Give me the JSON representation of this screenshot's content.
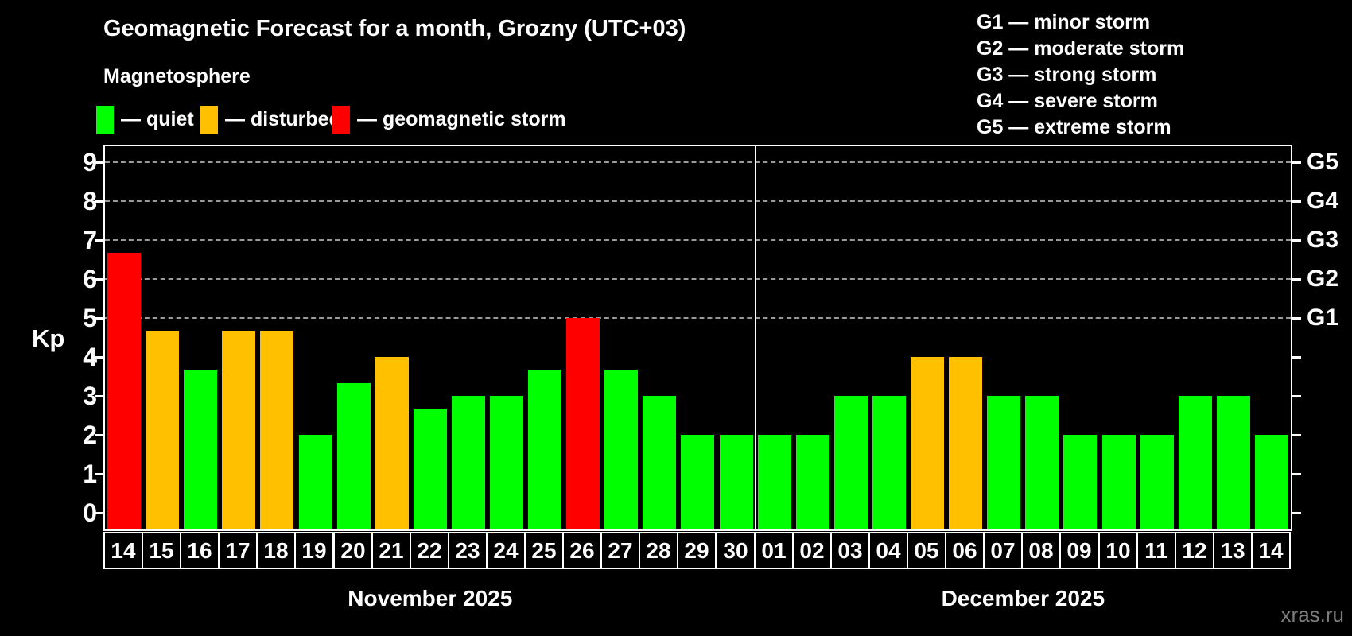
{
  "title": "Geomagnetic Forecast for a month, Grozny (UTC+03)",
  "subtitle": "Magnetosphere",
  "legend": [
    {
      "key": "quiet",
      "label": "— quiet"
    },
    {
      "key": "disturbed",
      "label": "— disturbed"
    },
    {
      "key": "storm",
      "label": "— geomagnetic storm"
    }
  ],
  "g_legend": [
    "G1 — minor storm",
    "G2 — moderate storm",
    "G3 — strong storm",
    "G4 — severe storm",
    "G5 — extreme storm"
  ],
  "colors": {
    "quiet": "#00ff00",
    "disturbed": "#ffc000",
    "storm": "#ff0000",
    "background": "#000000",
    "grid": "#999999",
    "axis": "#ffffff",
    "watermark": "#7d7d7d"
  },
  "axis": {
    "kp_label": "Kp",
    "y_ticks": [
      0,
      1,
      2,
      3,
      4,
      5,
      6,
      7,
      8,
      9
    ],
    "g_labels": [
      {
        "label": "G1",
        "kp": 5
      },
      {
        "label": "G2",
        "kp": 6
      },
      {
        "label": "G3",
        "kp": 7
      },
      {
        "label": "G4",
        "kp": 8
      },
      {
        "label": "G5",
        "kp": 9
      }
    ]
  },
  "watermark": "xras.ru",
  "chart_data": {
    "type": "bar",
    "title": "Geomagnetic Forecast for a month, Grozny (UTC+03)",
    "xlabel": "",
    "ylabel": "Kp",
    "ylim": [
      0,
      9
    ],
    "grid": "dashed horizontal lines at Kp 5-9 (G1-G5)",
    "legend_position": "top",
    "months": [
      {
        "label": "November 2025",
        "bars": [
          {
            "day": "14",
            "value": 6.67,
            "status": "storm"
          },
          {
            "day": "15",
            "value": 4.67,
            "status": "disturbed"
          },
          {
            "day": "16",
            "value": 3.67,
            "status": "quiet"
          },
          {
            "day": "17",
            "value": 4.67,
            "status": "disturbed"
          },
          {
            "day": "18",
            "value": 4.67,
            "status": "disturbed"
          },
          {
            "day": "19",
            "value": 2.0,
            "status": "quiet"
          },
          {
            "day": "20",
            "value": 3.33,
            "status": "quiet"
          },
          {
            "day": "21",
            "value": 4.0,
            "status": "disturbed"
          },
          {
            "day": "22",
            "value": 2.67,
            "status": "quiet"
          },
          {
            "day": "23",
            "value": 3.0,
            "status": "quiet"
          },
          {
            "day": "24",
            "value": 3.0,
            "status": "quiet"
          },
          {
            "day": "25",
            "value": 3.67,
            "status": "quiet"
          },
          {
            "day": "26",
            "value": 5.0,
            "status": "storm"
          },
          {
            "day": "27",
            "value": 3.67,
            "status": "quiet"
          },
          {
            "day": "28",
            "value": 3.0,
            "status": "quiet"
          },
          {
            "day": "29",
            "value": 2.0,
            "status": "quiet"
          },
          {
            "day": "30",
            "value": 2.0,
            "status": "quiet"
          }
        ]
      },
      {
        "label": "December 2025",
        "bars": [
          {
            "day": "01",
            "value": 2.0,
            "status": "quiet"
          },
          {
            "day": "02",
            "value": 2.0,
            "status": "quiet"
          },
          {
            "day": "03",
            "value": 3.0,
            "status": "quiet"
          },
          {
            "day": "04",
            "value": 3.0,
            "status": "quiet"
          },
          {
            "day": "05",
            "value": 4.0,
            "status": "disturbed"
          },
          {
            "day": "06",
            "value": 4.0,
            "status": "disturbed"
          },
          {
            "day": "07",
            "value": 3.0,
            "status": "quiet"
          },
          {
            "day": "08",
            "value": 3.0,
            "status": "quiet"
          },
          {
            "day": "09",
            "value": 2.0,
            "status": "quiet"
          },
          {
            "day": "10",
            "value": 2.0,
            "status": "quiet"
          },
          {
            "day": "11",
            "value": 2.0,
            "status": "quiet"
          },
          {
            "day": "12",
            "value": 3.0,
            "status": "quiet"
          },
          {
            "day": "13",
            "value": 3.0,
            "status": "quiet"
          },
          {
            "day": "14",
            "value": 2.0,
            "status": "quiet"
          }
        ]
      }
    ]
  }
}
